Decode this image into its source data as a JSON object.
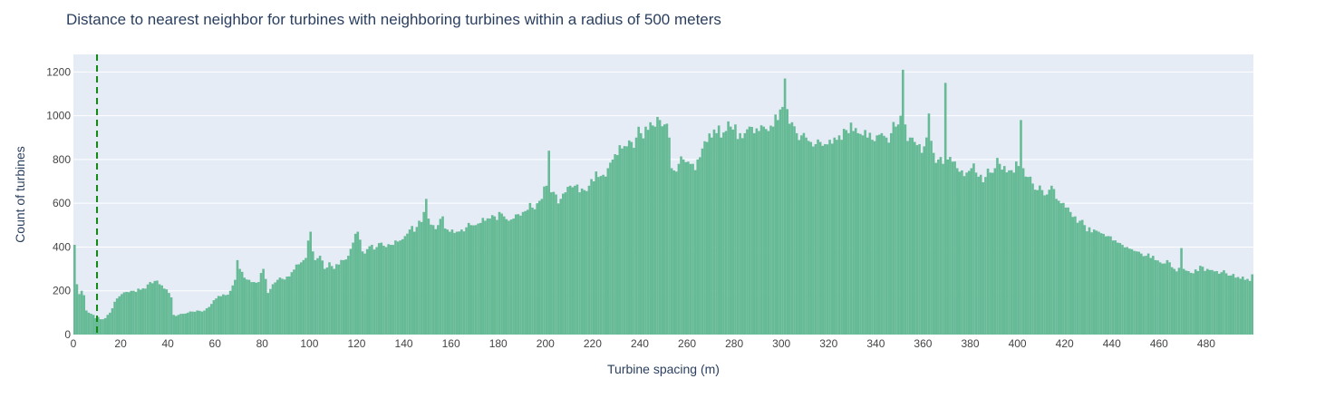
{
  "chart_data": {
    "type": "bar",
    "title": "Distance to nearest neighbor for turbines with neighboring turbines within a radius of 500 meters",
    "xlabel": "Turbine spacing (m)",
    "ylabel": "Count of turbines",
    "xlim": [
      0,
      500
    ],
    "ylim": [
      0,
      1280
    ],
    "xticks": [
      0,
      20,
      40,
      60,
      80,
      100,
      120,
      140,
      160,
      180,
      200,
      220,
      240,
      260,
      280,
      300,
      320,
      340,
      360,
      380,
      400,
      420,
      440,
      460,
      480
    ],
    "yticks": [
      0,
      200,
      400,
      600,
      800,
      1000,
      1200
    ],
    "bin_width": 1,
    "bin_start": 0,
    "vline_x": 10,
    "grid": true,
    "colors": {
      "bars": "#66bb96",
      "plot_bg": "#e5ecf6",
      "vline": "#118811",
      "grid": "#ffffff"
    },
    "anchors": [
      [
        0,
        410
      ],
      [
        1,
        230
      ],
      [
        2,
        185
      ],
      [
        3,
        200
      ],
      [
        4,
        180
      ],
      [
        5,
        110
      ],
      [
        6,
        100
      ],
      [
        7,
        95
      ],
      [
        8,
        90
      ],
      [
        9,
        75
      ],
      [
        10,
        80
      ],
      [
        11,
        70
      ],
      [
        12,
        70
      ],
      [
        13,
        75
      ],
      [
        14,
        90
      ],
      [
        15,
        100
      ],
      [
        16,
        120
      ],
      [
        17,
        150
      ],
      [
        18,
        165
      ],
      [
        19,
        175
      ],
      [
        20,
        185
      ],
      [
        22,
        195
      ],
      [
        24,
        200
      ],
      [
        26,
        195
      ],
      [
        28,
        205
      ],
      [
        30,
        210
      ],
      [
        32,
        240
      ],
      [
        34,
        245
      ],
      [
        36,
        230
      ],
      [
        38,
        210
      ],
      [
        40,
        190
      ],
      [
        41,
        170
      ],
      [
        42,
        90
      ],
      [
        43,
        85
      ],
      [
        44,
        90
      ],
      [
        46,
        95
      ],
      [
        48,
        100
      ],
      [
        50,
        105
      ],
      [
        52,
        110
      ],
      [
        54,
        105
      ],
      [
        56,
        120
      ],
      [
        58,
        140
      ],
      [
        60,
        165
      ],
      [
        62,
        175
      ],
      [
        64,
        180
      ],
      [
        66,
        200
      ],
      [
        68,
        250
      ],
      [
        69,
        340
      ],
      [
        70,
        300
      ],
      [
        72,
        260
      ],
      [
        74,
        250
      ],
      [
        76,
        240
      ],
      [
        78,
        240
      ],
      [
        80,
        300
      ],
      [
        82,
        190
      ],
      [
        84,
        230
      ],
      [
        86,
        250
      ],
      [
        88,
        255
      ],
      [
        90,
        265
      ],
      [
        92,
        285
      ],
      [
        94,
        320
      ],
      [
        96,
        330
      ],
      [
        98,
        350
      ],
      [
        100,
        470
      ],
      [
        101,
        380
      ],
      [
        102,
        340
      ],
      [
        104,
        360
      ],
      [
        106,
        300
      ],
      [
        108,
        330
      ],
      [
        110,
        300
      ],
      [
        112,
        320
      ],
      [
        114,
        340
      ],
      [
        116,
        360
      ],
      [
        118,
        420
      ],
      [
        120,
        470
      ],
      [
        122,
        380
      ],
      [
        124,
        390
      ],
      [
        126,
        410
      ],
      [
        128,
        400
      ],
      [
        130,
        420
      ],
      [
        132,
        400
      ],
      [
        134,
        410
      ],
      [
        136,
        430
      ],
      [
        138,
        430
      ],
      [
        140,
        450
      ],
      [
        142,
        480
      ],
      [
        144,
        470
      ],
      [
        146,
        520
      ],
      [
        148,
        560
      ],
      [
        149,
        620
      ],
      [
        150,
        530
      ],
      [
        152,
        500
      ],
      [
        154,
        500
      ],
      [
        156,
        540
      ],
      [
        158,
        480
      ],
      [
        160,
        480
      ],
      [
        162,
        470
      ],
      [
        164,
        480
      ],
      [
        166,
        490
      ],
      [
        168,
        500
      ],
      [
        170,
        500
      ],
      [
        172,
        510
      ],
      [
        174,
        520
      ],
      [
        176,
        530
      ],
      [
        178,
        540
      ],
      [
        180,
        560
      ],
      [
        182,
        540
      ],
      [
        184,
        520
      ],
      [
        186,
        530
      ],
      [
        188,
        550
      ],
      [
        190,
        560
      ],
      [
        192,
        570
      ],
      [
        194,
        580
      ],
      [
        196,
        600
      ],
      [
        198,
        620
      ],
      [
        200,
        680
      ],
      [
        201,
        840
      ],
      [
        202,
        650
      ],
      [
        204,
        640
      ],
      [
        206,
        620
      ],
      [
        208,
        650
      ],
      [
        210,
        680
      ],
      [
        212,
        680
      ],
      [
        214,
        650
      ],
      [
        216,
        660
      ],
      [
        218,
        680
      ],
      [
        220,
        700
      ],
      [
        222,
        720
      ],
      [
        224,
        730
      ],
      [
        226,
        760
      ],
      [
        228,
        800
      ],
      [
        230,
        820
      ],
      [
        232,
        850
      ],
      [
        234,
        860
      ],
      [
        236,
        880
      ],
      [
        238,
        900
      ],
      [
        240,
        920
      ],
      [
        242,
        950
      ],
      [
        244,
        970
      ],
      [
        246,
        950
      ],
      [
        248,
        980
      ],
      [
        250,
        960
      ],
      [
        252,
        900
      ],
      [
        253,
        760
      ],
      [
        254,
        750
      ],
      [
        256,
        780
      ],
      [
        258,
        800
      ],
      [
        260,
        790
      ],
      [
        262,
        780
      ],
      [
        264,
        800
      ],
      [
        266,
        850
      ],
      [
        268,
        880
      ],
      [
        270,
        900
      ],
      [
        272,
        920
      ],
      [
        274,
        900
      ],
      [
        276,
        930
      ],
      [
        278,
        950
      ],
      [
        280,
        960
      ],
      [
        282,
        920
      ],
      [
        284,
        920
      ],
      [
        286,
        950
      ],
      [
        288,
        920
      ],
      [
        290,
        930
      ],
      [
        292,
        950
      ],
      [
        294,
        930
      ],
      [
        296,
        950
      ],
      [
        298,
        980
      ],
      [
        300,
        1040
      ],
      [
        301,
        1170
      ],
      [
        302,
        1030
      ],
      [
        304,
        970
      ],
      [
        306,
        920
      ],
      [
        308,
        910
      ],
      [
        310,
        900
      ],
      [
        312,
        880
      ],
      [
        314,
        870
      ],
      [
        316,
        880
      ],
      [
        318,
        870
      ],
      [
        320,
        890
      ],
      [
        322,
        900
      ],
      [
        324,
        910
      ],
      [
        326,
        940
      ],
      [
        328,
        920
      ],
      [
        330,
        930
      ],
      [
        332,
        920
      ],
      [
        334,
        910
      ],
      [
        336,
        900
      ],
      [
        338,
        890
      ],
      [
        340,
        910
      ],
      [
        342,
        920
      ],
      [
        344,
        900
      ],
      [
        346,
        920
      ],
      [
        348,
        950
      ],
      [
        350,
        1000
      ],
      [
        351,
        1210
      ],
      [
        352,
        960
      ],
      [
        354,
        900
      ],
      [
        356,
        880
      ],
      [
        358,
        870
      ],
      [
        360,
        860
      ],
      [
        362,
        1010
      ],
      [
        364,
        830
      ],
      [
        366,
        800
      ],
      [
        368,
        780
      ],
      [
        369,
        1150
      ],
      [
        370,
        800
      ],
      [
        372,
        790
      ],
      [
        374,
        760
      ],
      [
        376,
        750
      ],
      [
        378,
        740
      ],
      [
        380,
        760
      ],
      [
        382,
        740
      ],
      [
        384,
        730
      ],
      [
        386,
        720
      ],
      [
        388,
        740
      ],
      [
        390,
        760
      ],
      [
        392,
        780
      ],
      [
        394,
        770
      ],
      [
        396,
        750
      ],
      [
        398,
        740
      ],
      [
        400,
        770
      ],
      [
        401,
        980
      ],
      [
        402,
        760
      ],
      [
        404,
        720
      ],
      [
        406,
        690
      ],
      [
        408,
        660
      ],
      [
        410,
        660
      ],
      [
        412,
        640
      ],
      [
        414,
        680
      ],
      [
        416,
        620
      ],
      [
        418,
        600
      ],
      [
        420,
        580
      ],
      [
        422,
        560
      ],
      [
        424,
        540
      ],
      [
        426,
        520
      ],
      [
        428,
        500
      ],
      [
        430,
        490
      ],
      [
        432,
        480
      ],
      [
        434,
        470
      ],
      [
        436,
        460
      ],
      [
        438,
        450
      ],
      [
        440,
        430
      ],
      [
        442,
        420
      ],
      [
        444,
        410
      ],
      [
        446,
        400
      ],
      [
        448,
        390
      ],
      [
        450,
        380
      ],
      [
        452,
        370
      ],
      [
        454,
        360
      ],
      [
        456,
        350
      ],
      [
        458,
        340
      ],
      [
        460,
        330
      ],
      [
        462,
        325
      ],
      [
        464,
        330
      ],
      [
        466,
        300
      ],
      [
        468,
        305
      ],
      [
        469,
        395
      ],
      [
        470,
        300
      ],
      [
        472,
        290
      ],
      [
        474,
        280
      ],
      [
        476,
        290
      ],
      [
        478,
        310
      ],
      [
        480,
        300
      ],
      [
        482,
        295
      ],
      [
        484,
        290
      ],
      [
        486,
        285
      ],
      [
        488,
        280
      ],
      [
        490,
        270
      ],
      [
        492,
        260
      ],
      [
        494,
        255
      ],
      [
        496,
        250
      ],
      [
        498,
        245
      ],
      [
        499,
        275
      ]
    ]
  }
}
